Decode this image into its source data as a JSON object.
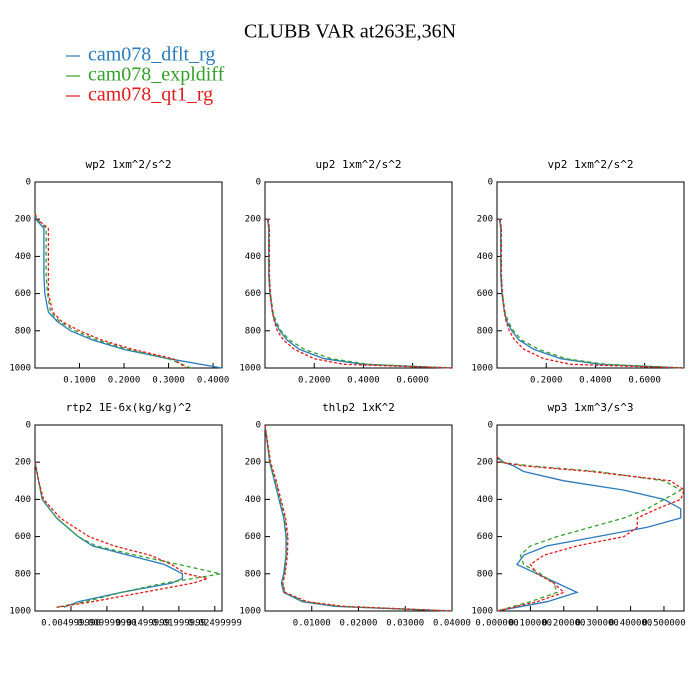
{
  "title": "CLUBB VAR at263E,36N",
  "legend": [
    {
      "name": "cam078_dflt_rg",
      "color": "#2b7bba",
      "dash": "none"
    },
    {
      "name": "cam078_expldiff",
      "color": "#33a02c",
      "dash": "4 3"
    },
    {
      "name": "cam078_qt1_rg",
      "color": "#e31a1c",
      "dash": "3 2"
    }
  ],
  "chart_data": [
    {
      "type": "line",
      "title": "wp2   1xm^2/s^2",
      "y": [
        170,
        200,
        250,
        300,
        400,
        500,
        600,
        700,
        750,
        800,
        850,
        900,
        950,
        1000
      ],
      "series": [
        {
          "values": [
            0,
            0.002,
            0.02,
            0.02,
            0.02,
            0.02,
            0.022,
            0.03,
            0.05,
            0.08,
            0.13,
            0.2,
            0.3,
            0.42
          ]
        },
        {
          "values": [
            0,
            0.005,
            0.025,
            0.025,
            0.025,
            0.025,
            0.028,
            0.035,
            0.055,
            0.09,
            0.14,
            0.21,
            0.3,
            0.35
          ]
        },
        {
          "values": [
            0,
            0.005,
            0.03,
            0.03,
            0.03,
            0.03,
            0.03,
            0.04,
            0.06,
            0.1,
            0.15,
            0.22,
            0.31,
            0.34
          ]
        }
      ],
      "xlim": [
        0,
        0.42
      ],
      "xticks": [
        {
          "value": 0.1,
          "label": "0.1000"
        },
        {
          "value": 0.2,
          "label": "0.2000"
        },
        {
          "value": 0.3,
          "label": "0.3000"
        },
        {
          "value": 0.4,
          "label": "0.4000"
        }
      ],
      "ylim": [
        0,
        1000
      ],
      "yticks": [
        0,
        200,
        400,
        600,
        800,
        1000
      ]
    },
    {
      "type": "line",
      "title": "up2   1xm^2/s^2",
      "y": [
        200,
        250,
        300,
        400,
        500,
        600,
        700,
        750,
        800,
        850,
        900,
        950,
        980,
        1000
      ],
      "series": [
        {
          "values": [
            0.01,
            0.015,
            0.015,
            0.015,
            0.015,
            0.02,
            0.03,
            0.04,
            0.06,
            0.09,
            0.14,
            0.24,
            0.4,
            0.76
          ]
        },
        {
          "values": [
            0.012,
            0.017,
            0.017,
            0.017,
            0.017,
            0.022,
            0.033,
            0.045,
            0.065,
            0.1,
            0.16,
            0.27,
            0.42,
            0.76
          ]
        },
        {
          "values": [
            0.012,
            0.018,
            0.018,
            0.018,
            0.018,
            0.022,
            0.03,
            0.038,
            0.05,
            0.075,
            0.12,
            0.2,
            0.32,
            0.76
          ]
        }
      ],
      "xlim": [
        0,
        0.76
      ],
      "xticks": [
        {
          "value": 0.2,
          "label": "0.2000"
        },
        {
          "value": 0.4,
          "label": "0.4000"
        },
        {
          "value": 0.6,
          "label": "0.6000"
        }
      ],
      "ylim": [
        0,
        1000
      ],
      "yticks": [
        0,
        200,
        400,
        600,
        800,
        1000
      ]
    },
    {
      "type": "line",
      "title": "vp2   1xm^2/s^2",
      "y": [
        200,
        250,
        300,
        400,
        500,
        600,
        700,
        750,
        800,
        850,
        900,
        950,
        980,
        1000
      ],
      "series": [
        {
          "values": [
            0.01,
            0.015,
            0.015,
            0.015,
            0.015,
            0.02,
            0.03,
            0.04,
            0.06,
            0.09,
            0.15,
            0.26,
            0.42,
            0.76
          ]
        },
        {
          "values": [
            0.012,
            0.017,
            0.017,
            0.017,
            0.017,
            0.022,
            0.033,
            0.045,
            0.067,
            0.1,
            0.17,
            0.28,
            0.44,
            0.76
          ]
        },
        {
          "values": [
            0.012,
            0.018,
            0.018,
            0.018,
            0.018,
            0.022,
            0.03,
            0.037,
            0.05,
            0.072,
            0.11,
            0.19,
            0.3,
            0.76
          ]
        }
      ],
      "xlim": [
        0,
        0.76
      ],
      "xticks": [
        {
          "value": 0.2,
          "label": "0.2000"
        },
        {
          "value": 0.4,
          "label": "0.4000"
        },
        {
          "value": 0.6,
          "label": "0.6000"
        }
      ],
      "ylim": [
        0,
        1000
      ],
      "yticks": [
        0,
        200,
        400,
        600,
        800,
        1000
      ]
    },
    {
      "type": "line",
      "title": "rtp2   1E-6x(kg/kg)^2",
      "y": [
        200,
        300,
        400,
        500,
        600,
        650,
        700,
        750,
        800,
        825,
        850,
        900,
        950,
        980
      ],
      "series": [
        {
          "values": [
            0,
            0.0005,
            0.001,
            0.003,
            0.006,
            0.008,
            0.013,
            0.018,
            0.0205,
            0.0205,
            0.019,
            0.012,
            0.006,
            0.004
          ]
        },
        {
          "values": [
            0,
            0.0005,
            0.001,
            0.003,
            0.006,
            0.0085,
            0.014,
            0.02,
            0.0258,
            0.022,
            0.018,
            0.012,
            0.007,
            0.003
          ]
        },
        {
          "values": [
            0,
            0.0005,
            0.0012,
            0.0035,
            0.0075,
            0.011,
            0.016,
            0.019,
            0.021,
            0.024,
            0.022,
            0.015,
            0.008,
            0.003
          ]
        }
      ],
      "xlim": [
        0,
        0.026
      ],
      "xticks": [
        {
          "value": 0.005,
          "label": "0.004999990"
        },
        {
          "value": 0.01,
          "label": "0.009999990"
        },
        {
          "value": 0.015,
          "label": "0.01499999"
        },
        {
          "value": 0.02,
          "label": "0.01999999"
        },
        {
          "value": 0.025,
          "label": "0.02499999"
        }
      ],
      "ylim": [
        0,
        1000
      ],
      "yticks": [
        0,
        200,
        400,
        600,
        800,
        1000
      ]
    },
    {
      "type": "line",
      "title": "thlp2   1xK^2",
      "y": [
        0,
        200,
        300,
        400,
        500,
        600,
        700,
        800,
        850,
        900,
        950,
        975,
        1000
      ],
      "series": [
        {
          "values": [
            0,
            0.001,
            0.002,
            0.003,
            0.004,
            0.0045,
            0.0045,
            0.004,
            0.0035,
            0.004,
            0.008,
            0.015,
            0.04
          ]
        },
        {
          "values": [
            0,
            0.001,
            0.0022,
            0.0032,
            0.0042,
            0.0047,
            0.0046,
            0.0042,
            0.0037,
            0.0042,
            0.0085,
            0.016,
            0.04
          ]
        },
        {
          "values": [
            0,
            0.0012,
            0.0024,
            0.0034,
            0.0044,
            0.0049,
            0.0048,
            0.0043,
            0.0038,
            0.0043,
            0.009,
            0.017,
            0.04
          ]
        }
      ],
      "xlim": [
        0,
        0.04
      ],
      "xticks": [
        {
          "value": 0.01,
          "label": "0.01000"
        },
        {
          "value": 0.02,
          "label": "0.02000"
        },
        {
          "value": 0.03,
          "label": "0.03000"
        },
        {
          "value": 0.04,
          "label": "0.04000"
        }
      ],
      "ylim": [
        0,
        1000
      ],
      "yticks": [
        0,
        200,
        400,
        600,
        800,
        1000
      ]
    },
    {
      "type": "line",
      "title": "wp3   1xm^3/s^3",
      "y": [
        170,
        200,
        220,
        250,
        300,
        350,
        400,
        450,
        500,
        550,
        600,
        650,
        700,
        750,
        800,
        850,
        900,
        950,
        1000
      ],
      "series": [
        {
          "values": [
            0,
            0.02,
            0.05,
            0.08,
            0.2,
            0.38,
            0.5,
            0.55,
            0.55,
            0.45,
            0.3,
            0.15,
            0.08,
            0.06,
            0.12,
            0.18,
            0.24,
            0.15,
            0
          ]
        },
        {
          "values": [
            0,
            0.01,
            0.1,
            0.3,
            0.5,
            0.55,
            0.5,
            0.45,
            0.38,
            0.28,
            0.18,
            0.1,
            0.07,
            0.08,
            0.13,
            0.17,
            0.18,
            0.1,
            0
          ]
        },
        {
          "values": [
            0,
            0.01,
            0.08,
            0.28,
            0.52,
            0.56,
            0.55,
            0.48,
            0.42,
            0.42,
            0.38,
            0.24,
            0.14,
            0.1,
            0.12,
            0.17,
            0.2,
            0.12,
            0
          ]
        }
      ],
      "xlim": [
        0,
        0.56
      ],
      "xticks": [
        {
          "value": 0,
          "label": "0.000000"
        },
        {
          "value": 0.1,
          "label": "0.100000"
        },
        {
          "value": 0.2,
          "label": "0.200000"
        },
        {
          "value": 0.3,
          "label": "0.300000"
        },
        {
          "value": 0.4,
          "label": "0.400000"
        },
        {
          "value": 0.5,
          "label": "0.500000"
        }
      ],
      "ylim": [
        0,
        1000
      ],
      "yticks": [
        0,
        200,
        400,
        600,
        800,
        1000
      ]
    }
  ]
}
